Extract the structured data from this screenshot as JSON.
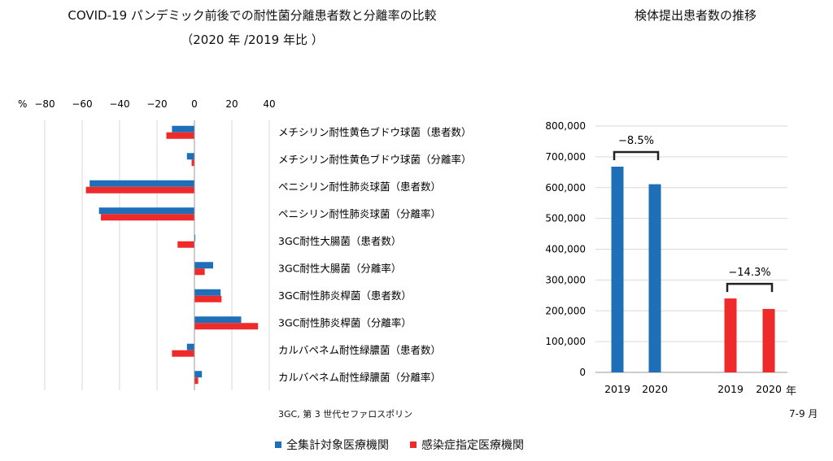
{
  "titles": {
    "left_line1": "COVID-19 パンデミック前後での耐性菌分離患者数と分離率の比較",
    "left_line2": "（2020 年 /2019 年比 ）",
    "right": "検体提出患者数の推移"
  },
  "footnote": "3GC, 第 3 世代セファロスポリン",
  "right_axis_unit": "年",
  "right_period": "7-9 月",
  "legend": [
    {
      "label": "全集計対象医療機関",
      "color": "#1f6fb8"
    },
    {
      "label": "感染症指定医療機関",
      "color": "#ee2a2a"
    }
  ],
  "chart_data": [
    {
      "type": "bar",
      "orientation": "horizontal",
      "axis_unit": "%",
      "xlim": [
        -80,
        40
      ],
      "xticks": [
        "−80",
        "−60",
        "−40",
        "−20",
        "0",
        "20",
        "40"
      ],
      "xtick_values": [
        -80,
        -60,
        -40,
        -20,
        0,
        20,
        40
      ],
      "categories": [
        "メチシリン耐性黄色ブドウ球菌（患者数）",
        "メチシリン耐性黄色ブドウ球菌（分離率）",
        "ペニシリン耐性肺炎球菌（患者数）",
        "ペニシリン耐性肺炎球菌（分離率）",
        "3GC耐性大腸菌（患者数）",
        "3GC耐性大腸菌（分離率）",
        "3GC耐性肺炎桿菌（患者数）",
        "3GC耐性肺炎桿菌（分離率）",
        "カルバペネム耐性緑膿菌（患者数）",
        "カルバペネム耐性緑膿菌（分離率）"
      ],
      "series": [
        {
          "name": "全集計対象医療機関",
          "values": [
            -12,
            -4,
            -56,
            -51,
            0.5,
            10,
            14,
            25,
            -4,
            4
          ]
        },
        {
          "name": "感染症指定医療機関",
          "values": [
            -15,
            -1.5,
            -58,
            -50,
            -9,
            5.5,
            14.5,
            34,
            -12,
            2
          ]
        }
      ],
      "grid": true
    },
    {
      "type": "bar",
      "ylim": [
        0,
        800000
      ],
      "yticks": [
        "0",
        "100,000",
        "200,000",
        "300,000",
        "400,000",
        "500,000",
        "600,000",
        "700,000",
        "800,000"
      ],
      "ytick_values": [
        0,
        100000,
        200000,
        300000,
        400000,
        500000,
        600000,
        700000,
        800000
      ],
      "groups": [
        {
          "name": "全集計対象医療機関",
          "categories": [
            "2019",
            "2020"
          ],
          "values": [
            668000,
            611000
          ],
          "color": "#1f6fb8",
          "annotation": "−8.5%"
        },
        {
          "name": "感染症指定医療機関",
          "categories": [
            "2019",
            "2020"
          ],
          "values": [
            240000,
            206000
          ],
          "color": "#ee2a2a",
          "annotation": "−14.3%"
        }
      ],
      "grid": true
    }
  ]
}
